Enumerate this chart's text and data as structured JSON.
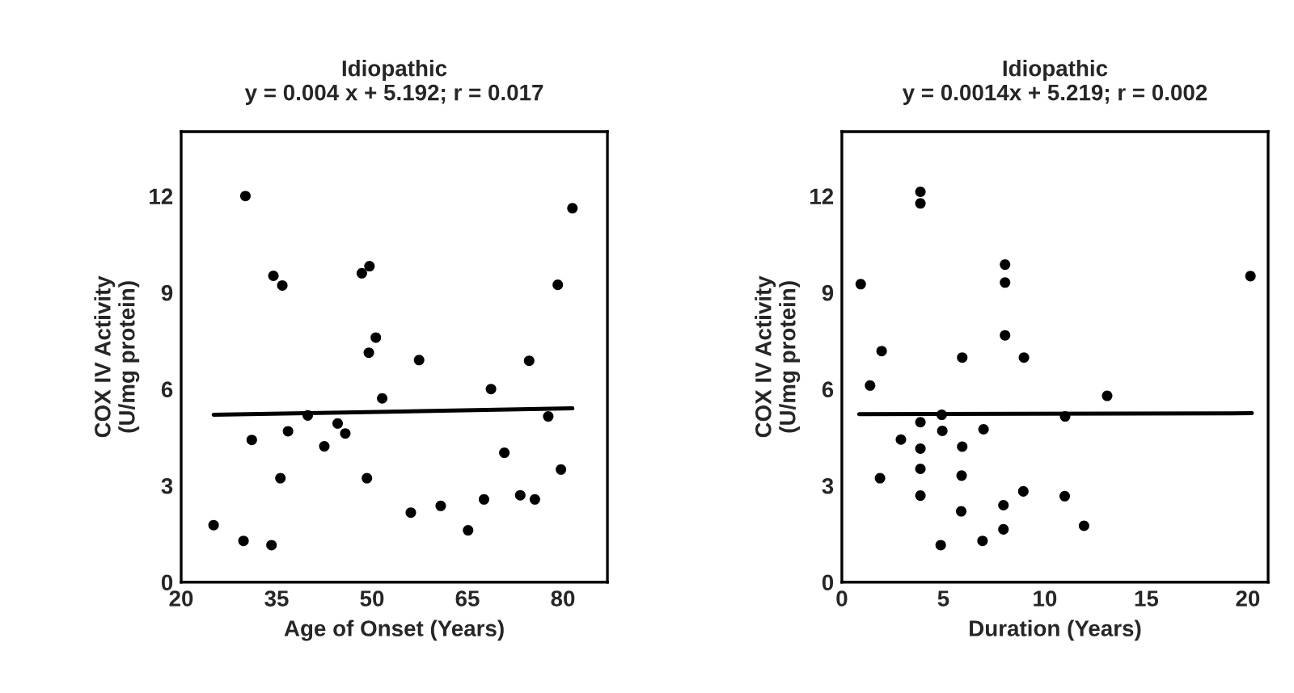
{
  "chart_data": [
    {
      "type": "scatter",
      "title": "Idiopathic",
      "subtitle": "y = 0.004 x + 5.192; r = 0.017",
      "xlabel": "Age of Onset (Years)",
      "ylabel": "COX IV Activity\n(U/mg protein)",
      "xlim": [
        20,
        87
      ],
      "xticks": [
        20,
        35,
        50,
        65,
        80
      ],
      "ylim": [
        0,
        14
      ],
      "yticks": [
        0,
        3,
        6,
        9,
        12
      ],
      "marker": "circle",
      "grid": false,
      "legend": false,
      "series": [
        {
          "color": "#000000",
          "x": [
            25.1,
            30.1,
            31.1,
            29.8,
            34.2,
            34.5,
            35.9,
            35.6,
            36.8,
            39.9,
            42.5,
            44.6,
            45.8,
            48.4,
            49.6,
            49.5,
            50.6,
            51.6,
            49.2,
            57.4,
            56.1,
            60.8,
            65.1,
            67.6,
            68.7,
            70.8,
            73.3,
            75.6,
            74.7,
            77.7,
            79.2,
            81.5,
            79.7
          ],
          "values": [
            1.77,
            12.0,
            4.42,
            1.28,
            1.15,
            9.52,
            9.22,
            3.23,
            4.69,
            5.18,
            4.22,
            4.93,
            4.62,
            9.6,
            9.82,
            7.13,
            7.6,
            5.71,
            3.23,
            6.9,
            2.16,
            2.37,
            1.61,
            2.57,
            6.0,
            4.02,
            2.7,
            2.57,
            6.88,
            5.15,
            9.24,
            11.62,
            3.5
          ]
        },
        {
          "type": "line",
          "color": "#000000",
          "marker": "none",
          "x": [
            25.1,
            81.5
          ],
          "values": [
            5.2,
            5.4
          ]
        }
      ]
    },
    {
      "type": "scatter",
      "title": "Idiopathic",
      "subtitle": "y = 0.0014x + 5.219; r = 0.002",
      "xlabel": "Duration (Years)",
      "ylabel": "COX IV Activity\n(U/mg protein)",
      "xlim": [
        0,
        21
      ],
      "xticks": [
        0,
        5,
        10,
        15,
        20
      ],
      "ylim": [
        0,
        14
      ],
      "yticks": [
        0,
        3,
        6,
        9,
        12
      ],
      "marker": "circle",
      "grid": false,
      "legend": false,
      "series": [
        {
          "color": "#000000",
          "x": [
            0.93,
            1.39,
            1.96,
            1.88,
            2.91,
            3.87,
            3.87,
            3.87,
            3.87,
            3.87,
            3.87,
            4.87,
            4.92,
            4.95,
            5.93,
            5.93,
            5.9,
            5.88,
            6.98,
            6.93,
            8.04,
            8.04,
            8.04,
            7.96,
            7.96,
            8.97,
            8.94,
            11.0,
            10.98,
            11.93,
            13.07,
            20.13
          ],
          "values": [
            9.26,
            6.11,
            7.18,
            3.23,
            4.43,
            12.13,
            11.77,
            4.97,
            4.15,
            3.52,
            2.69,
            1.15,
            5.2,
            4.7,
            6.98,
            4.21,
            3.31,
            2.2,
            4.75,
            1.28,
            9.87,
            9.31,
            7.67,
            2.39,
            1.64,
            6.98,
            2.82,
            5.15,
            2.67,
            1.75,
            5.79,
            9.51
          ]
        },
        {
          "type": "line",
          "color": "#000000",
          "marker": "none",
          "x": [
            0.85,
            20.2
          ],
          "values": [
            5.22,
            5.25
          ]
        }
      ]
    }
  ]
}
